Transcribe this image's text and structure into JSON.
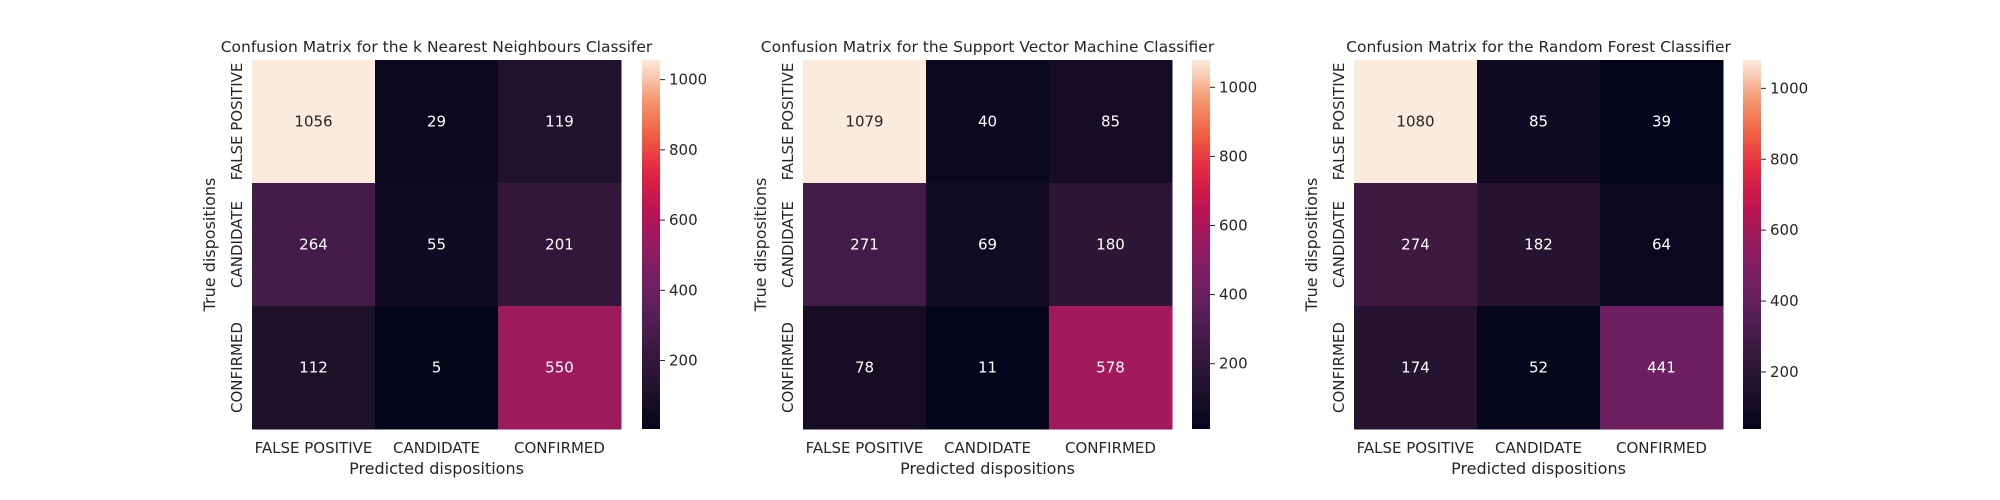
{
  "chart_data": [
    {
      "type": "heatmap",
      "title": "Confusion Matrix for the k Nearest Neighbours Classifer",
      "xlabel": "Predicted dispositions",
      "ylabel": "True dispositions",
      "x_categories": [
        "FALSE POSITIVE",
        "CANDIDATE",
        "CONFIRMED"
      ],
      "y_categories": [
        "FALSE POSITIVE",
        "CANDIDATE",
        "CONFIRMED"
      ],
      "values": [
        [
          1056,
          29,
          119
        ],
        [
          264,
          55,
          201
        ],
        [
          112,
          5,
          550
        ]
      ],
      "colormap": "rocket",
      "colorbar": {
        "range": [
          5,
          1056
        ],
        "ticks": [
          200,
          400,
          600,
          800,
          1000
        ]
      }
    },
    {
      "type": "heatmap",
      "title": "Confusion Matrix for the Support Vector Machine Classifier",
      "xlabel": "Predicted dispositions",
      "ylabel": "True dispositions",
      "x_categories": [
        "FALSE POSITIVE",
        "CANDIDATE",
        "CONFIRMED"
      ],
      "y_categories": [
        "FALSE POSITIVE",
        "CANDIDATE",
        "CONFIRMED"
      ],
      "values": [
        [
          1079,
          40,
          85
        ],
        [
          271,
          69,
          180
        ],
        [
          78,
          11,
          578
        ]
      ],
      "colormap": "rocket",
      "colorbar": {
        "range": [
          11,
          1079
        ],
        "ticks": [
          200,
          400,
          600,
          800,
          1000
        ]
      }
    },
    {
      "type": "heatmap",
      "title": "Confusion Matrix for the Random Forest Classifier",
      "xlabel": "Predicted dispositions",
      "ylabel": "True dispositions",
      "x_categories": [
        "FALSE POSITIVE",
        "CANDIDATE",
        "CONFIRMED"
      ],
      "y_categories": [
        "FALSE POSITIVE",
        "CANDIDATE",
        "CONFIRMED"
      ],
      "values": [
        [
          1080,
          85,
          39
        ],
        [
          274,
          182,
          64
        ],
        [
          174,
          52,
          441
        ]
      ],
      "colormap": "rocket",
      "colorbar": {
        "range": [
          39,
          1080
        ],
        "ticks": [
          200,
          400,
          600,
          800,
          1000
        ]
      }
    }
  ]
}
